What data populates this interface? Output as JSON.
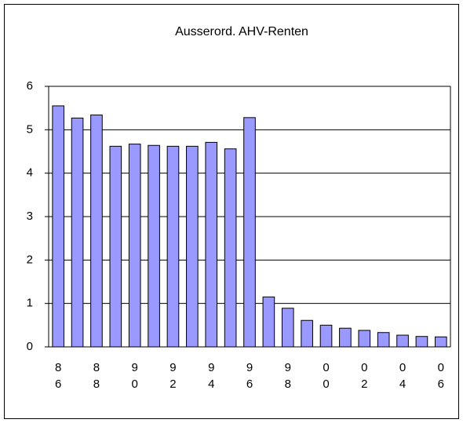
{
  "chart_data": {
    "type": "bar",
    "title": "Ausserord. AHV-Renten",
    "categories": [
      "86",
      null,
      "88",
      null,
      "90",
      null,
      "92",
      null,
      "94",
      null,
      "96",
      null,
      "98",
      null,
      "00",
      null,
      "02",
      null,
      "04",
      null,
      "06"
    ],
    "values": [
      5.55,
      5.27,
      5.34,
      4.62,
      4.67,
      4.64,
      4.62,
      4.62,
      4.71,
      4.56,
      5.28,
      1.15,
      0.89,
      0.61,
      0.5,
      0.43,
      0.38,
      0.33,
      0.27,
      0.24,
      0.23
    ],
    "color": "#9999ff",
    "ylim": [
      0,
      6
    ],
    "yticks": [
      0,
      1,
      2,
      3,
      4,
      5,
      6
    ],
    "grid": true
  }
}
